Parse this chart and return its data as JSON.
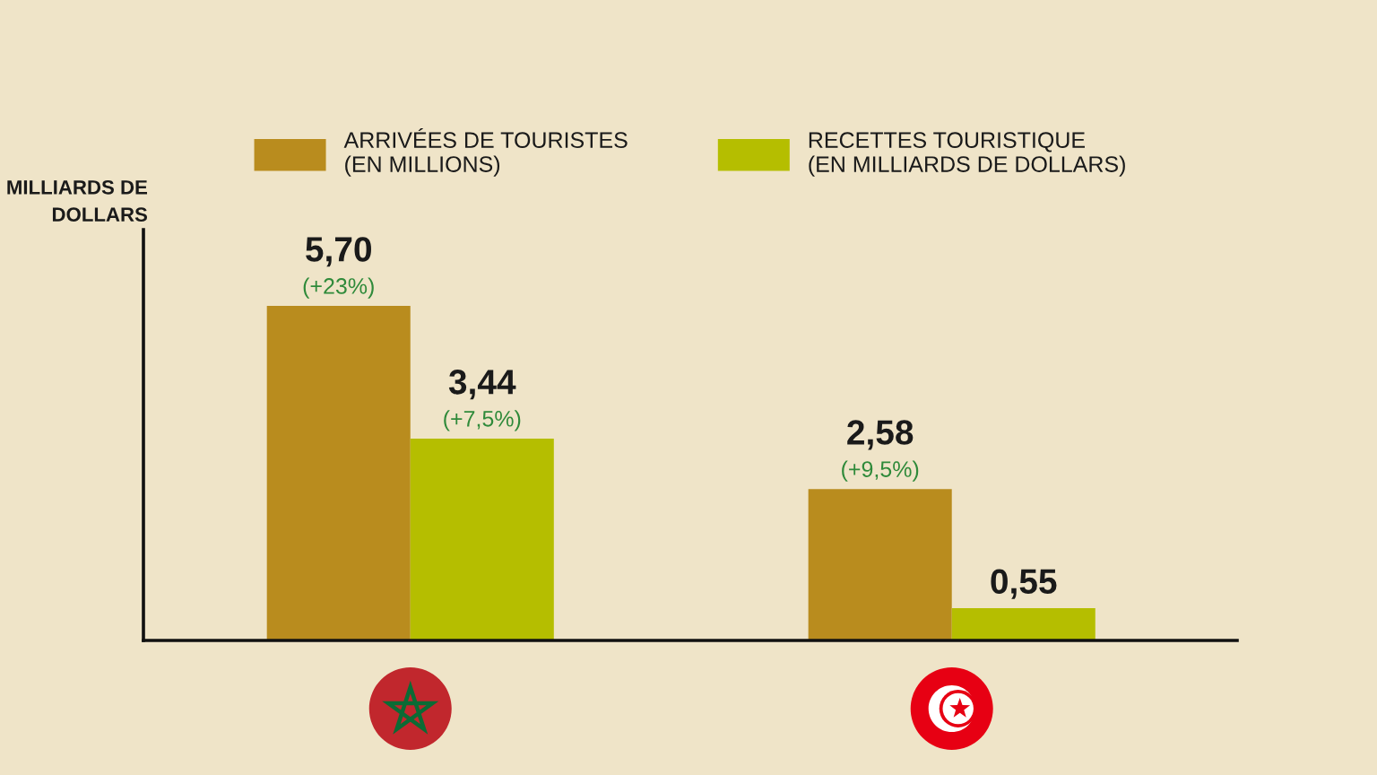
{
  "chart_data": {
    "type": "bar",
    "ylabel": "MILLIARDS DE\nDOLLARS",
    "categories": [
      null,
      null
    ],
    "series": [
      {
        "name": "ARRIVÉES DE TOURISTES\n(EN MILLIONS)",
        "color": "#b98c1e",
        "values": [
          5.7,
          2.58
        ],
        "value_labels": [
          "5,70\n(+23%)",
          "2,58\n(+9,5%)"
        ]
      },
      {
        "name": "RECETTES TOURISTIQUE\n(EN MILLIARDS DE DOLLARS)",
        "color": "#b5be00",
        "values": [
          3.44,
          0.55
        ],
        "value_labels": [
          "3,44\n(+7,5%)",
          "0,55"
        ]
      }
    ],
    "ylim": [
      0,
      7
    ],
    "legend": "top"
  }
}
